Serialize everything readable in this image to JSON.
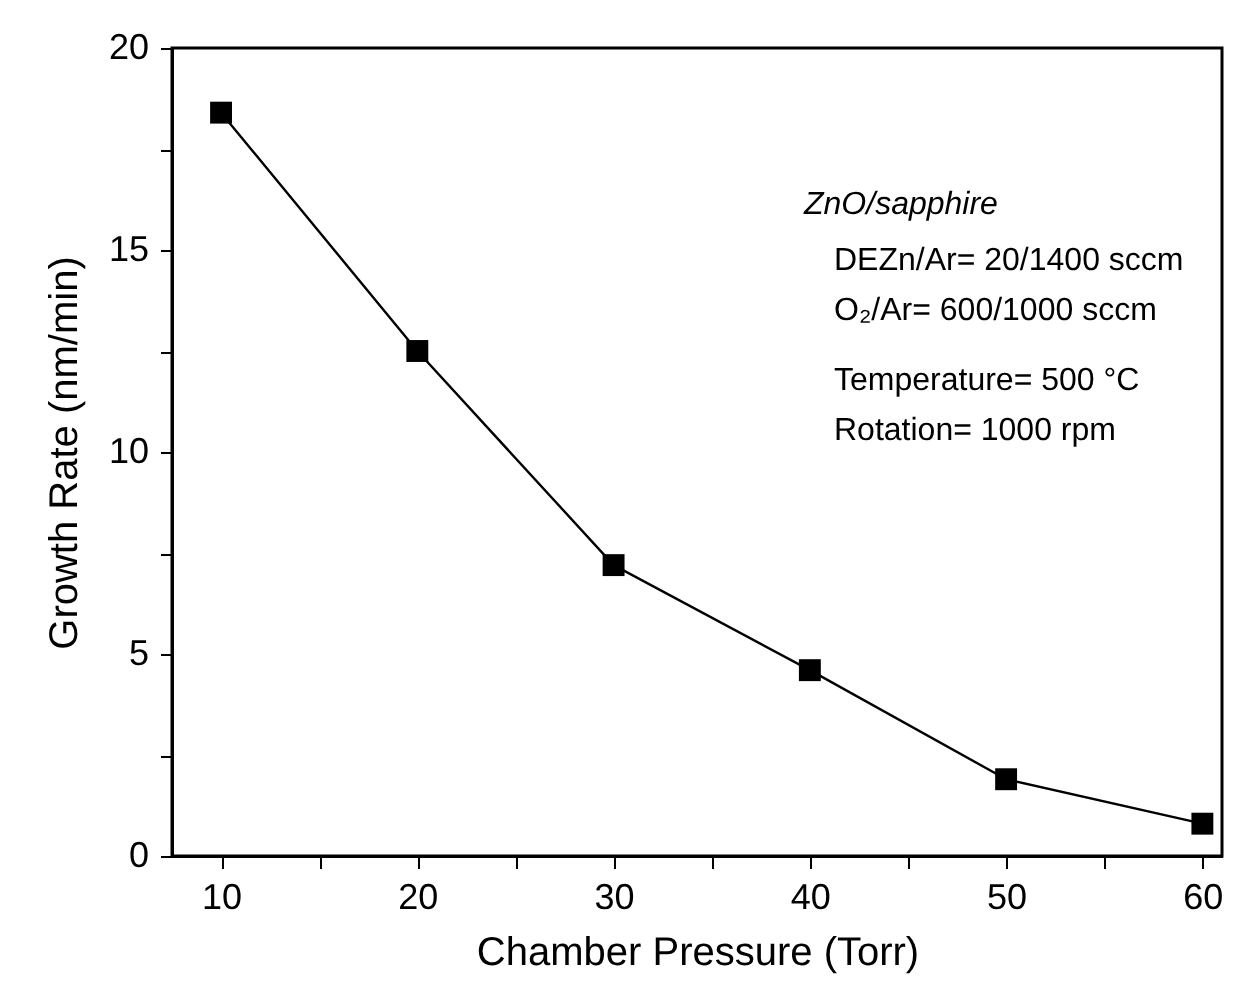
{
  "chart_data": {
    "type": "line",
    "xlabel": "Chamber Pressure (Torr)",
    "ylabel": "Growth Rate (nm/min)",
    "x": [
      10,
      20,
      30,
      40,
      50,
      60
    ],
    "series": [
      {
        "color": "#000000",
        "values": [
          18.4,
          12.5,
          7.2,
          4.6,
          1.9,
          0.8
        ]
      }
    ],
    "xlim": [
      7.5,
      61
    ],
    "ylim": [
      0,
      20
    ],
    "xticks": [
      10,
      {
        "value": 15,
        "label": null
      },
      20,
      {
        "value": 25,
        "label": null
      },
      30,
      {
        "value": 35,
        "label": null
      },
      40,
      {
        "value": 45,
        "label": null
      },
      50,
      {
        "value": 55,
        "label": null
      },
      60
    ],
    "yticks": [
      0,
      {
        "value": 2.5,
        "label": null
      },
      5,
      {
        "value": 7.5,
        "label": null
      },
      10,
      {
        "value": 12.5,
        "label": null
      },
      15,
      {
        "value": 17.5,
        "label": null
      },
      20
    ],
    "marker": "square",
    "line_style": "solid",
    "grid": false,
    "annotations": [
      "ZnO/sapphire",
      "DEZn/Ar= 20/1400 sccm",
      "O₂/Ar= 600/1000 sccm",
      "Temperature= 500 °C",
      "Rotation= 1000 rpm"
    ]
  }
}
